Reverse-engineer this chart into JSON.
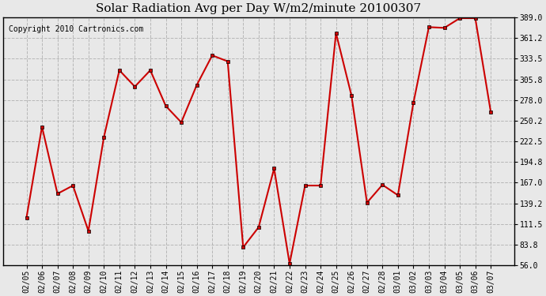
{
  "title": "Solar Radiation Avg per Day W/m2/minute 20100307",
  "copyright": "Copyright 2010 Cartronics.com",
  "dates": [
    "02/05",
    "02/06",
    "02/07",
    "02/08",
    "02/09",
    "02/10",
    "02/11",
    "02/12",
    "02/13",
    "02/14",
    "02/15",
    "02/16",
    "02/17",
    "02/18",
    "02/19",
    "02/20",
    "02/21",
    "02/22",
    "02/23",
    "02/24",
    "02/25",
    "02/26",
    "02/27",
    "02/28",
    "03/01",
    "03/02",
    "03/03",
    "03/04",
    "03/05",
    "03/06",
    "03/07"
  ],
  "values": [
    120.0,
    242.0,
    152.0,
    163.0,
    102.0,
    228.0,
    318.0,
    296.0,
    318.0,
    270.0,
    248.0,
    298.0,
    338.0,
    330.0,
    80.0,
    107.0,
    186.0,
    58.0,
    163.0,
    163.0,
    368.0,
    284.0,
    140.0,
    164.0,
    150.0,
    274.0,
    376.0,
    375.0,
    388.0,
    388.0,
    262.0
  ],
  "line_color": "#cc0000",
  "marker_color": "#000000",
  "bg_color": "#e8e8e8",
  "plot_bg_color": "#e8e8e8",
  "grid_color": "#aaaaaa",
  "ymin": 56.0,
  "ymax": 389.0,
  "yticks": [
    56.0,
    83.8,
    111.5,
    139.2,
    167.0,
    194.8,
    222.5,
    250.2,
    278.0,
    305.8,
    333.5,
    361.2,
    389.0
  ]
}
